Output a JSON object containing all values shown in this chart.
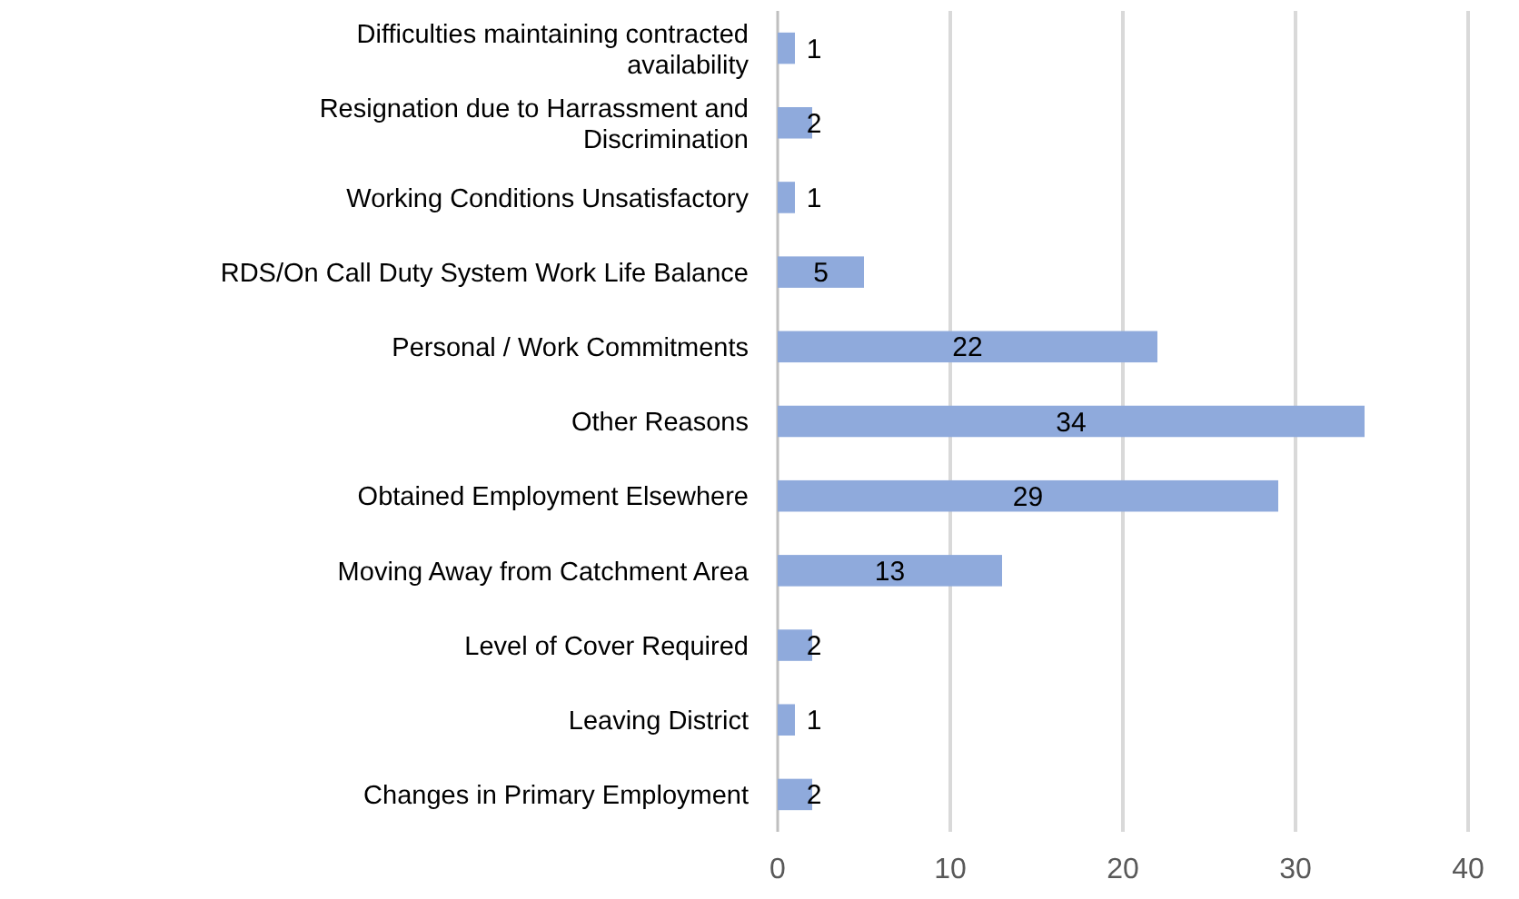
{
  "chart_data": {
    "type": "bar",
    "orientation": "horizontal",
    "categories": [
      "Difficulties maintaining contracted availability",
      "Resignation due to Harrassment and Discrimination",
      "Working Conditions Unsatisfactory",
      "RDS/On Call Duty System Work Life Balance",
      "Personal / Work Commitments",
      "Other Reasons",
      "Obtained Employment Elsewhere",
      "Moving Away from Catchment Area",
      "Level of Cover Required",
      "Leaving District",
      "Changes in Primary Employment"
    ],
    "values": [
      1,
      2,
      1,
      5,
      22,
      34,
      29,
      13,
      2,
      1,
      2
    ],
    "color": "#8faadc",
    "xlim": [
      0,
      40
    ],
    "xticks": [
      0,
      10,
      20,
      30,
      40
    ],
    "grid": "x",
    "data_labels": true
  }
}
